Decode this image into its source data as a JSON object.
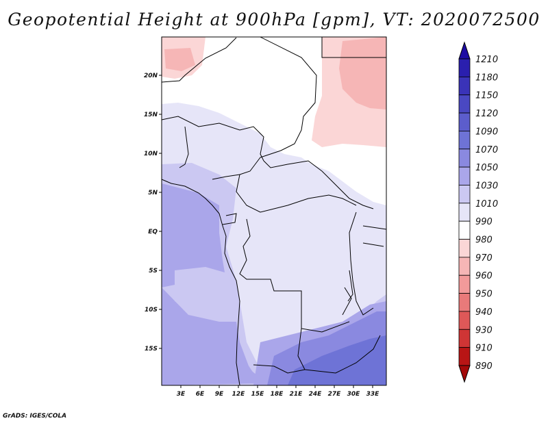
{
  "title": "Geopotential Height at 900hPa [gpm], VT: 2020072500",
  "footer": "GrADS: IGES/COLA",
  "map": {
    "lon_labels": [
      "3E",
      "6E",
      "9E",
      "12E",
      "15E",
      "18E",
      "21E",
      "24E",
      "27E",
      "30E",
      "33E"
    ],
    "lat_labels": [
      "20N",
      "15N",
      "10N",
      "5N",
      "EQ",
      "5S",
      "10S",
      "15S"
    ]
  },
  "colorbar": {
    "labels": [
      "1210",
      "1180",
      "1150",
      "1120",
      "1090",
      "1070",
      "1050",
      "1030",
      "1010",
      "990",
      "980",
      "970",
      "960",
      "950",
      "940",
      "930",
      "910",
      "890"
    ],
    "colors": [
      "#1d0ca3",
      "#2a1fae",
      "#3a33b8",
      "#4a48c2",
      "#5c5dcc",
      "#6e73d6",
      "#8a89e0",
      "#aaa6ea",
      "#cbc8f2",
      "#e6e5f8",
      "#ffffff",
      "#fbd6d6",
      "#f6b6b6",
      "#f29a9a",
      "#e97a7a",
      "#de5858",
      "#cf3535",
      "#b81515",
      "#a30909"
    ]
  }
}
